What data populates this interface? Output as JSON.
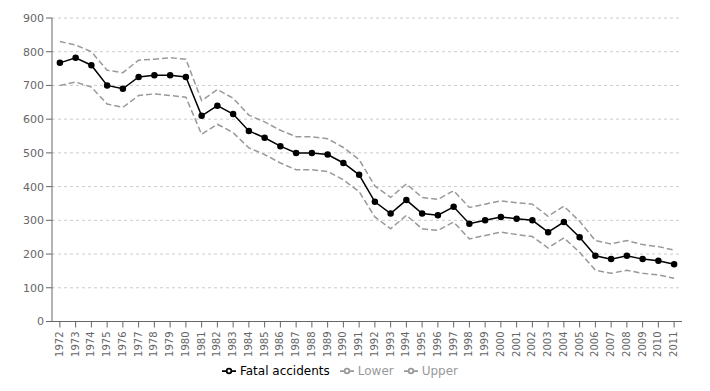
{
  "chart_data": {
    "type": "line",
    "x": [
      1972,
      1973,
      1974,
      1975,
      1976,
      1977,
      1978,
      1979,
      1980,
      1981,
      1982,
      1983,
      1984,
      1985,
      1986,
      1987,
      1988,
      1989,
      1990,
      1991,
      1992,
      1993,
      1994,
      1995,
      1996,
      1997,
      1998,
      1999,
      2000,
      2001,
      2002,
      2003,
      2004,
      2005,
      2006,
      2007,
      2008,
      2009,
      2010,
      2011
    ],
    "series": [
      {
        "name": "Lower",
        "color": "#999999",
        "line_style": "dashed",
        "marker": "none",
        "values": [
          700,
          710,
          695,
          645,
          635,
          670,
          675,
          670,
          665,
          555,
          585,
          560,
          515,
          495,
          470,
          450,
          450,
          445,
          420,
          385,
          310,
          275,
          315,
          275,
          270,
          295,
          245,
          255,
          265,
          258,
          252,
          218,
          248,
          205,
          152,
          143,
          152,
          143,
          138,
          128
        ]
      },
      {
        "name": "Upper",
        "color": "#999999",
        "line_style": "dashed",
        "marker": "none",
        "values": [
          830,
          820,
          800,
          745,
          738,
          775,
          778,
          782,
          778,
          655,
          688,
          662,
          612,
          592,
          567,
          548,
          548,
          542,
          516,
          480,
          402,
          368,
          408,
          368,
          362,
          388,
          338,
          348,
          358,
          352,
          348,
          312,
          342,
          297,
          240,
          230,
          240,
          228,
          222,
          212
        ]
      },
      {
        "name": "Fatal accidents",
        "color": "#000000",
        "line_style": "solid",
        "marker": "circle",
        "values": [
          767,
          782,
          760,
          700,
          690,
          725,
          730,
          730,
          725,
          610,
          640,
          615,
          565,
          545,
          520,
          500,
          500,
          495,
          470,
          435,
          355,
          320,
          360,
          320,
          315,
          340,
          290,
          300,
          310,
          305,
          300,
          265,
          295,
          250,
          195,
          185,
          195,
          185,
          180,
          170
        ]
      }
    ],
    "xlim": [
      1971.5,
      2011.5
    ],
    "xticks": [
      1972,
      1973,
      1974,
      1975,
      1976,
      1977,
      1978,
      1979,
      1980,
      1981,
      1982,
      1983,
      1984,
      1985,
      1986,
      1987,
      1988,
      1989,
      1990,
      1991,
      1992,
      1993,
      1994,
      1995,
      1996,
      1997,
      1998,
      1999,
      2000,
      2001,
      2002,
      2003,
      2004,
      2005,
      2006,
      2007,
      2008,
      2009,
      2010,
      2011
    ],
    "ylim": [
      0,
      900
    ],
    "yticks": [
      0,
      100,
      200,
      300,
      400,
      500,
      600,
      700,
      800,
      900
    ],
    "grid": "y",
    "legend": "bottom"
  }
}
